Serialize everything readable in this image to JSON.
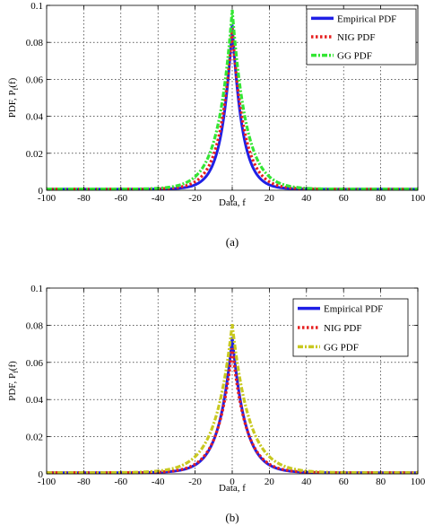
{
  "chart_data": [
    {
      "type": "line",
      "caption": "(a)",
      "xlabel": "Data, f",
      "ylabel": "PDF, P_f(f)",
      "xlim": [
        -100,
        100
      ],
      "ylim": [
        0,
        0.1
      ],
      "xticks": [
        -100,
        -80,
        -60,
        -40,
        -20,
        0,
        20,
        40,
        60,
        80,
        100
      ],
      "yticks": [
        0,
        0.02,
        0.04,
        0.06,
        0.08,
        0.1
      ],
      "grid": true,
      "legend_position": "top-right",
      "series": [
        {
          "name": "Empirical PDF",
          "color": "#1f1fe6",
          "style": "solid",
          "peak": 0.089,
          "scale": 5.5
        },
        {
          "name": "NIG PDF",
          "color": "#e62020",
          "style": "dotted",
          "peak": 0.087,
          "scale": 6.5
        },
        {
          "name": "GG PDF",
          "color": "#33e633",
          "style": "dashdot",
          "peak": 0.097,
          "scale": 7.5
        }
      ]
    },
    {
      "type": "line",
      "caption": "(b)",
      "xlabel": "Data, f",
      "ylabel": "PDF, P_f(f)",
      "xlim": [
        -100,
        100
      ],
      "ylim": [
        0,
        0.1
      ],
      "xticks": [
        -100,
        -80,
        -60,
        -40,
        -20,
        0,
        20,
        40,
        60,
        80,
        100
      ],
      "yticks": [
        0,
        0.02,
        0.04,
        0.06,
        0.08,
        0.1
      ],
      "grid": true,
      "legend_position": "top-right",
      "series": [
        {
          "name": "Empirical PDF",
          "color": "#1f1fe6",
          "style": "solid",
          "peak": 0.073,
          "scale": 7
        },
        {
          "name": "NIG PDF",
          "color": "#e62020",
          "style": "dotted",
          "peak": 0.067,
          "scale": 7.5
        },
        {
          "name": "GG PDF",
          "color": "#c8c820",
          "style": "dashdot",
          "peak": 0.08,
          "scale": 9
        }
      ]
    }
  ]
}
